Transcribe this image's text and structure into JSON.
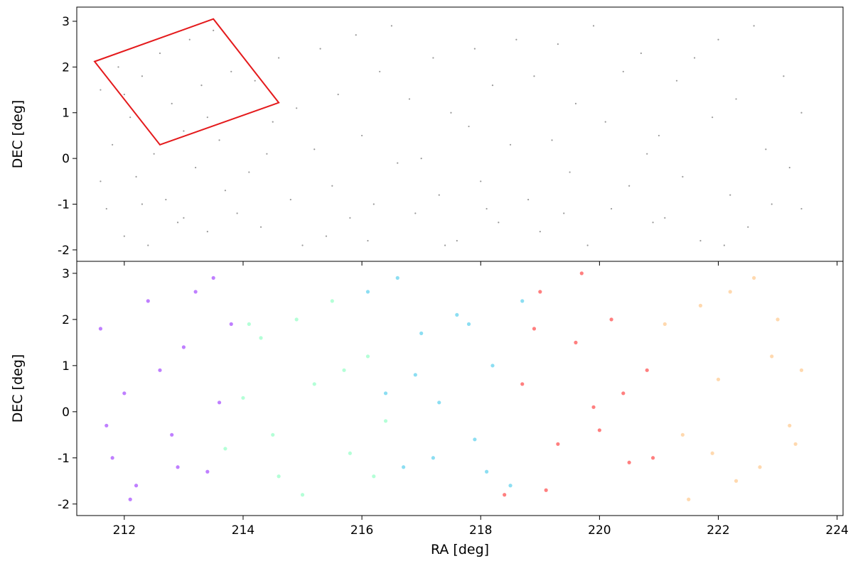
{
  "chart_data": [
    {
      "type": "scatter",
      "ylabel": "DEC [deg]",
      "xlim": [
        211.2,
        224.1
      ],
      "ylim": [
        -2.25,
        3.31
      ],
      "yticks": [
        -2,
        -1,
        0,
        1,
        2,
        3
      ],
      "series": [
        {
          "color": "#000000",
          "x": [
            211.6,
            211.7,
            211.8,
            211.9,
            212.0,
            212.1,
            212.2,
            212.3,
            212.4,
            212.5,
            212.6,
            212.7,
            212.8,
            212.9,
            213.0,
            213.1,
            213.2,
            213.3,
            213.4,
            213.5,
            213.6,
            213.7,
            213.8,
            213.9,
            211.6,
            212.3,
            213.0,
            212.0,
            213.4,
            214.1,
            214.2,
            214.3,
            214.5,
            214.6,
            214.8,
            214.9,
            215.0,
            215.2,
            215.3,
            215.5,
            215.6,
            215.8,
            215.9,
            216.0,
            216.2,
            216.3,
            216.5,
            216.6,
            214.4,
            215.4,
            216.1,
            216.8,
            216.9,
            217.0,
            217.2,
            217.3,
            217.5,
            217.6,
            217.8,
            217.9,
            218.0,
            218.2,
            218.3,
            218.5,
            218.6,
            217.4,
            218.1,
            218.8,
            218.9,
            219.0,
            219.2,
            219.3,
            219.5,
            219.6,
            219.8,
            219.9,
            220.1,
            220.2,
            220.4,
            220.5,
            220.7,
            220.8,
            220.9,
            219.4,
            221.0,
            221.1,
            221.3,
            221.4,
            221.6,
            221.7,
            221.9,
            222.0,
            222.2,
            222.3,
            222.5,
            222.6,
            222.8,
            222.9,
            223.1,
            223.2,
            223.4,
            223.4,
            222.1
          ],
          "values": [
            1.5,
            -1.1,
            0.3,
            2.0,
            -1.7,
            0.9,
            -0.4,
            1.8,
            -1.9,
            0.1,
            2.3,
            -0.9,
            1.2,
            -1.4,
            0.6,
            2.6,
            -0.2,
            1.6,
            -1.6,
            2.8,
            0.4,
            -0.7,
            1.9,
            -1.2,
            -0.5,
            -1.0,
            -1.3,
            1.4,
            0.9,
            -0.3,
            1.7,
            -1.5,
            0.8,
            2.2,
            -0.9,
            1.1,
            -1.9,
            0.2,
            2.4,
            -0.6,
            1.4,
            -1.3,
            2.7,
            0.5,
            -1.0,
            1.9,
            2.9,
            -0.1,
            0.1,
            -1.7,
            -1.8,
            1.3,
            -1.2,
            0.0,
            2.2,
            -0.8,
            1.0,
            -1.8,
            0.7,
            2.4,
            -0.5,
            1.6,
            -1.4,
            0.3,
            2.6,
            -1.9,
            -1.1,
            -0.9,
            1.8,
            -1.6,
            0.4,
            2.5,
            -0.3,
            1.2,
            -1.9,
            2.9,
            0.8,
            -1.1,
            1.9,
            -0.6,
            2.3,
            0.1,
            -1.4,
            -1.2,
            0.5,
            -1.3,
            1.7,
            -0.4,
            2.2,
            -1.8,
            0.9,
            2.6,
            -0.8,
            1.3,
            -1.5,
            2.9,
            0.2,
            -1.0,
            1.8,
            -0.2,
            1.0,
            -1.1,
            -1.9
          ]
        }
      ],
      "outline": {
        "color": "#e41a1c",
        "x": [
          211.5,
          213.5,
          214.6,
          212.6
        ],
        "y": [
          2.12,
          3.05,
          1.22,
          0.3
        ]
      }
    },
    {
      "type": "scatter",
      "xlabel": "RA [deg]",
      "ylabel": "DEC [deg]",
      "xlim": [
        211.2,
        224.1
      ],
      "ylim": [
        -2.25,
        3.26
      ],
      "xticks": [
        212,
        214,
        216,
        218,
        220,
        222,
        224
      ],
      "yticks": [
        -2,
        -1,
        0,
        1,
        2,
        3
      ],
      "series": [
        {
          "color": "#8000ff",
          "x": [
            211.6,
            211.8,
            212.0,
            212.2,
            212.4,
            212.6,
            212.8,
            213.0,
            213.2,
            213.4,
            213.6,
            213.8,
            212.1,
            212.9,
            213.5,
            211.7
          ],
          "values": [
            1.8,
            -1.0,
            0.4,
            -1.6,
            2.4,
            0.9,
            -0.5,
            1.4,
            2.6,
            -1.3,
            0.2,
            1.9,
            -1.9,
            -1.2,
            2.9,
            -0.3
          ]
        },
        {
          "color": "#6affb0",
          "x": [
            213.7,
            214.0,
            214.3,
            214.6,
            214.9,
            215.2,
            215.5,
            215.8,
            216.1,
            216.4,
            214.5,
            215.0,
            215.7,
            216.2,
            214.1
          ],
          "values": [
            -0.8,
            0.3,
            1.6,
            -1.4,
            2.0,
            0.6,
            2.4,
            -0.9,
            1.2,
            -0.2,
            -0.5,
            -1.8,
            0.9,
            -1.4,
            1.9
          ]
        },
        {
          "color": "#1abde6",
          "x": [
            216.1,
            216.4,
            216.7,
            217.0,
            217.3,
            217.6,
            217.9,
            218.2,
            218.5,
            218.7,
            216.6,
            217.2,
            217.8,
            218.1,
            216.9
          ],
          "values": [
            2.6,
            0.4,
            -1.2,
            1.7,
            0.2,
            2.1,
            -0.6,
            1.0,
            -1.6,
            2.4,
            2.9,
            -1.0,
            1.9,
            -1.3,
            0.8
          ]
        },
        {
          "color": "#ff0000",
          "x": [
            218.4,
            218.7,
            219.0,
            219.3,
            219.6,
            219.9,
            220.2,
            220.5,
            220.8,
            219.1,
            219.7,
            220.4,
            218.9,
            220.0,
            220.9
          ],
          "values": [
            -1.8,
            0.6,
            2.6,
            -0.7,
            1.5,
            0.1,
            2.0,
            -1.1,
            0.9,
            -1.7,
            3.0,
            0.4,
            1.8,
            -0.4,
            -1.0
          ]
        },
        {
          "color": "#ffb360",
          "x": [
            221.1,
            221.4,
            221.7,
            222.0,
            222.3,
            222.6,
            222.9,
            223.2,
            223.4,
            221.5,
            222.2,
            222.7,
            223.0,
            221.9,
            223.3
          ],
          "values": [
            1.9,
            -0.5,
            2.3,
            0.7,
            -1.5,
            2.9,
            1.2,
            -0.3,
            0.9,
            -1.9,
            2.6,
            -1.2,
            2.0,
            -0.9,
            -0.7
          ]
        }
      ]
    }
  ]
}
